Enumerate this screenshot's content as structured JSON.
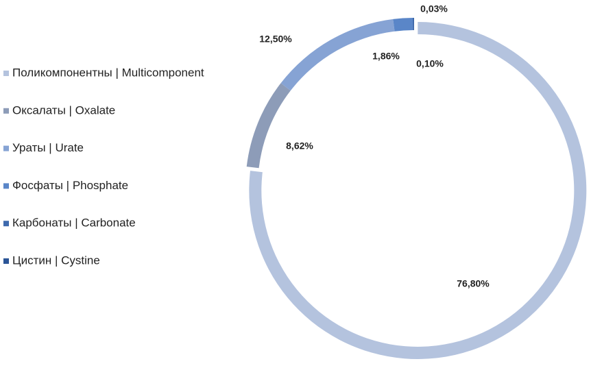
{
  "chart_data": {
    "type": "doughnut",
    "categories": [
      "Поликомпонентны  |  Multicomponent",
      "Оксалаты | Oxalate",
      "Ураты | Urate",
      "Фосфаты | Phosphate",
      "Карбонаты | Carbonate",
      "Цистин | Cystine"
    ],
    "values": [
      76.8,
      8.62,
      12.5,
      1.86,
      0.1,
      0.03
    ],
    "value_labels": [
      "76,80%",
      "8,62%",
      "12,50%",
      "1,86%",
      "0,10%",
      "0,03%"
    ],
    "colors": [
      "#b4c3de",
      "#8d9cb8",
      "#86a3d4",
      "#5a86c8",
      "#3e6aae",
      "#2b5597"
    ],
    "legend": "left"
  }
}
